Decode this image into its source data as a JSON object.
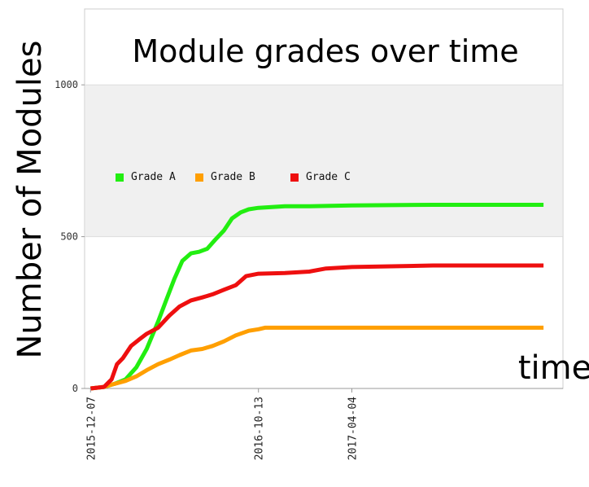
{
  "chart_data": {
    "type": "line",
    "title": "Module grades over time",
    "xlabel": "time",
    "ylabel": "Number of Modules",
    "ylim": [
      0,
      1250
    ],
    "xlim": [
      "2015-11-26",
      "2018-04-30"
    ],
    "y_ticks": [
      0,
      500,
      1000
    ],
    "x_ticks": [
      "2015-12-07",
      "2016-10-13",
      "2017-04-04"
    ],
    "legend_position": "upper-left, inside plot",
    "background_band": {
      "from": 500,
      "to": 1000,
      "color": "#f0f0f0"
    },
    "series": [
      {
        "name": "Grade A",
        "color": "#22ee11",
        "points": [
          [
            "2015-12-07",
            0
          ],
          [
            "2016-01-01",
            5
          ],
          [
            "2016-01-20",
            15
          ],
          [
            "2016-02-10",
            30
          ],
          [
            "2016-03-01",
            70
          ],
          [
            "2016-03-20",
            130
          ],
          [
            "2016-04-10",
            220
          ],
          [
            "2016-04-25",
            290
          ],
          [
            "2016-05-10",
            360
          ],
          [
            "2016-05-25",
            420
          ],
          [
            "2016-06-10",
            445
          ],
          [
            "2016-06-25",
            450
          ],
          [
            "2016-07-10",
            460
          ],
          [
            "2016-07-25",
            490
          ],
          [
            "2016-08-10",
            520
          ],
          [
            "2016-08-25",
            560
          ],
          [
            "2016-09-10",
            580
          ],
          [
            "2016-09-25",
            590
          ],
          [
            "2016-10-13",
            595
          ],
          [
            "2016-12-01",
            600
          ],
          [
            "2017-01-15",
            600
          ],
          [
            "2017-04-04",
            603
          ],
          [
            "2017-09-01",
            605
          ],
          [
            "2018-03-25",
            605
          ]
        ]
      },
      {
        "name": "Grade B",
        "color": "#ff9f00",
        "points": [
          [
            "2015-12-07",
            0
          ],
          [
            "2016-01-01",
            5
          ],
          [
            "2016-01-20",
            15
          ],
          [
            "2016-02-10",
            25
          ],
          [
            "2016-03-01",
            40
          ],
          [
            "2016-03-20",
            60
          ],
          [
            "2016-04-10",
            80
          ],
          [
            "2016-05-01",
            95
          ],
          [
            "2016-05-20",
            110
          ],
          [
            "2016-06-10",
            125
          ],
          [
            "2016-07-01",
            130
          ],
          [
            "2016-07-20",
            140
          ],
          [
            "2016-08-10",
            155
          ],
          [
            "2016-09-01",
            175
          ],
          [
            "2016-09-25",
            190
          ],
          [
            "2016-10-13",
            195
          ],
          [
            "2016-10-25",
            200
          ],
          [
            "2017-01-15",
            200
          ],
          [
            "2017-04-04",
            200
          ],
          [
            "2018-03-25",
            200
          ]
        ]
      },
      {
        "name": "Grade C",
        "color": "#ee0f0f",
        "points": [
          [
            "2015-12-07",
            0
          ],
          [
            "2016-01-01",
            5
          ],
          [
            "2016-01-15",
            30
          ],
          [
            "2016-01-25",
            80
          ],
          [
            "2016-02-05",
            100
          ],
          [
            "2016-02-20",
            140
          ],
          [
            "2016-03-05",
            160
          ],
          [
            "2016-03-20",
            180
          ],
          [
            "2016-04-10",
            200
          ],
          [
            "2016-05-01",
            240
          ],
          [
            "2016-05-20",
            270
          ],
          [
            "2016-06-10",
            290
          ],
          [
            "2016-07-01",
            300
          ],
          [
            "2016-07-20",
            310
          ],
          [
            "2016-08-10",
            325
          ],
          [
            "2016-09-01",
            340
          ],
          [
            "2016-09-20",
            370
          ],
          [
            "2016-10-13",
            378
          ],
          [
            "2016-12-01",
            380
          ],
          [
            "2017-01-15",
            385
          ],
          [
            "2017-02-15",
            395
          ],
          [
            "2017-04-04",
            400
          ],
          [
            "2017-09-01",
            405
          ],
          [
            "2018-03-25",
            405
          ]
        ]
      }
    ]
  }
}
